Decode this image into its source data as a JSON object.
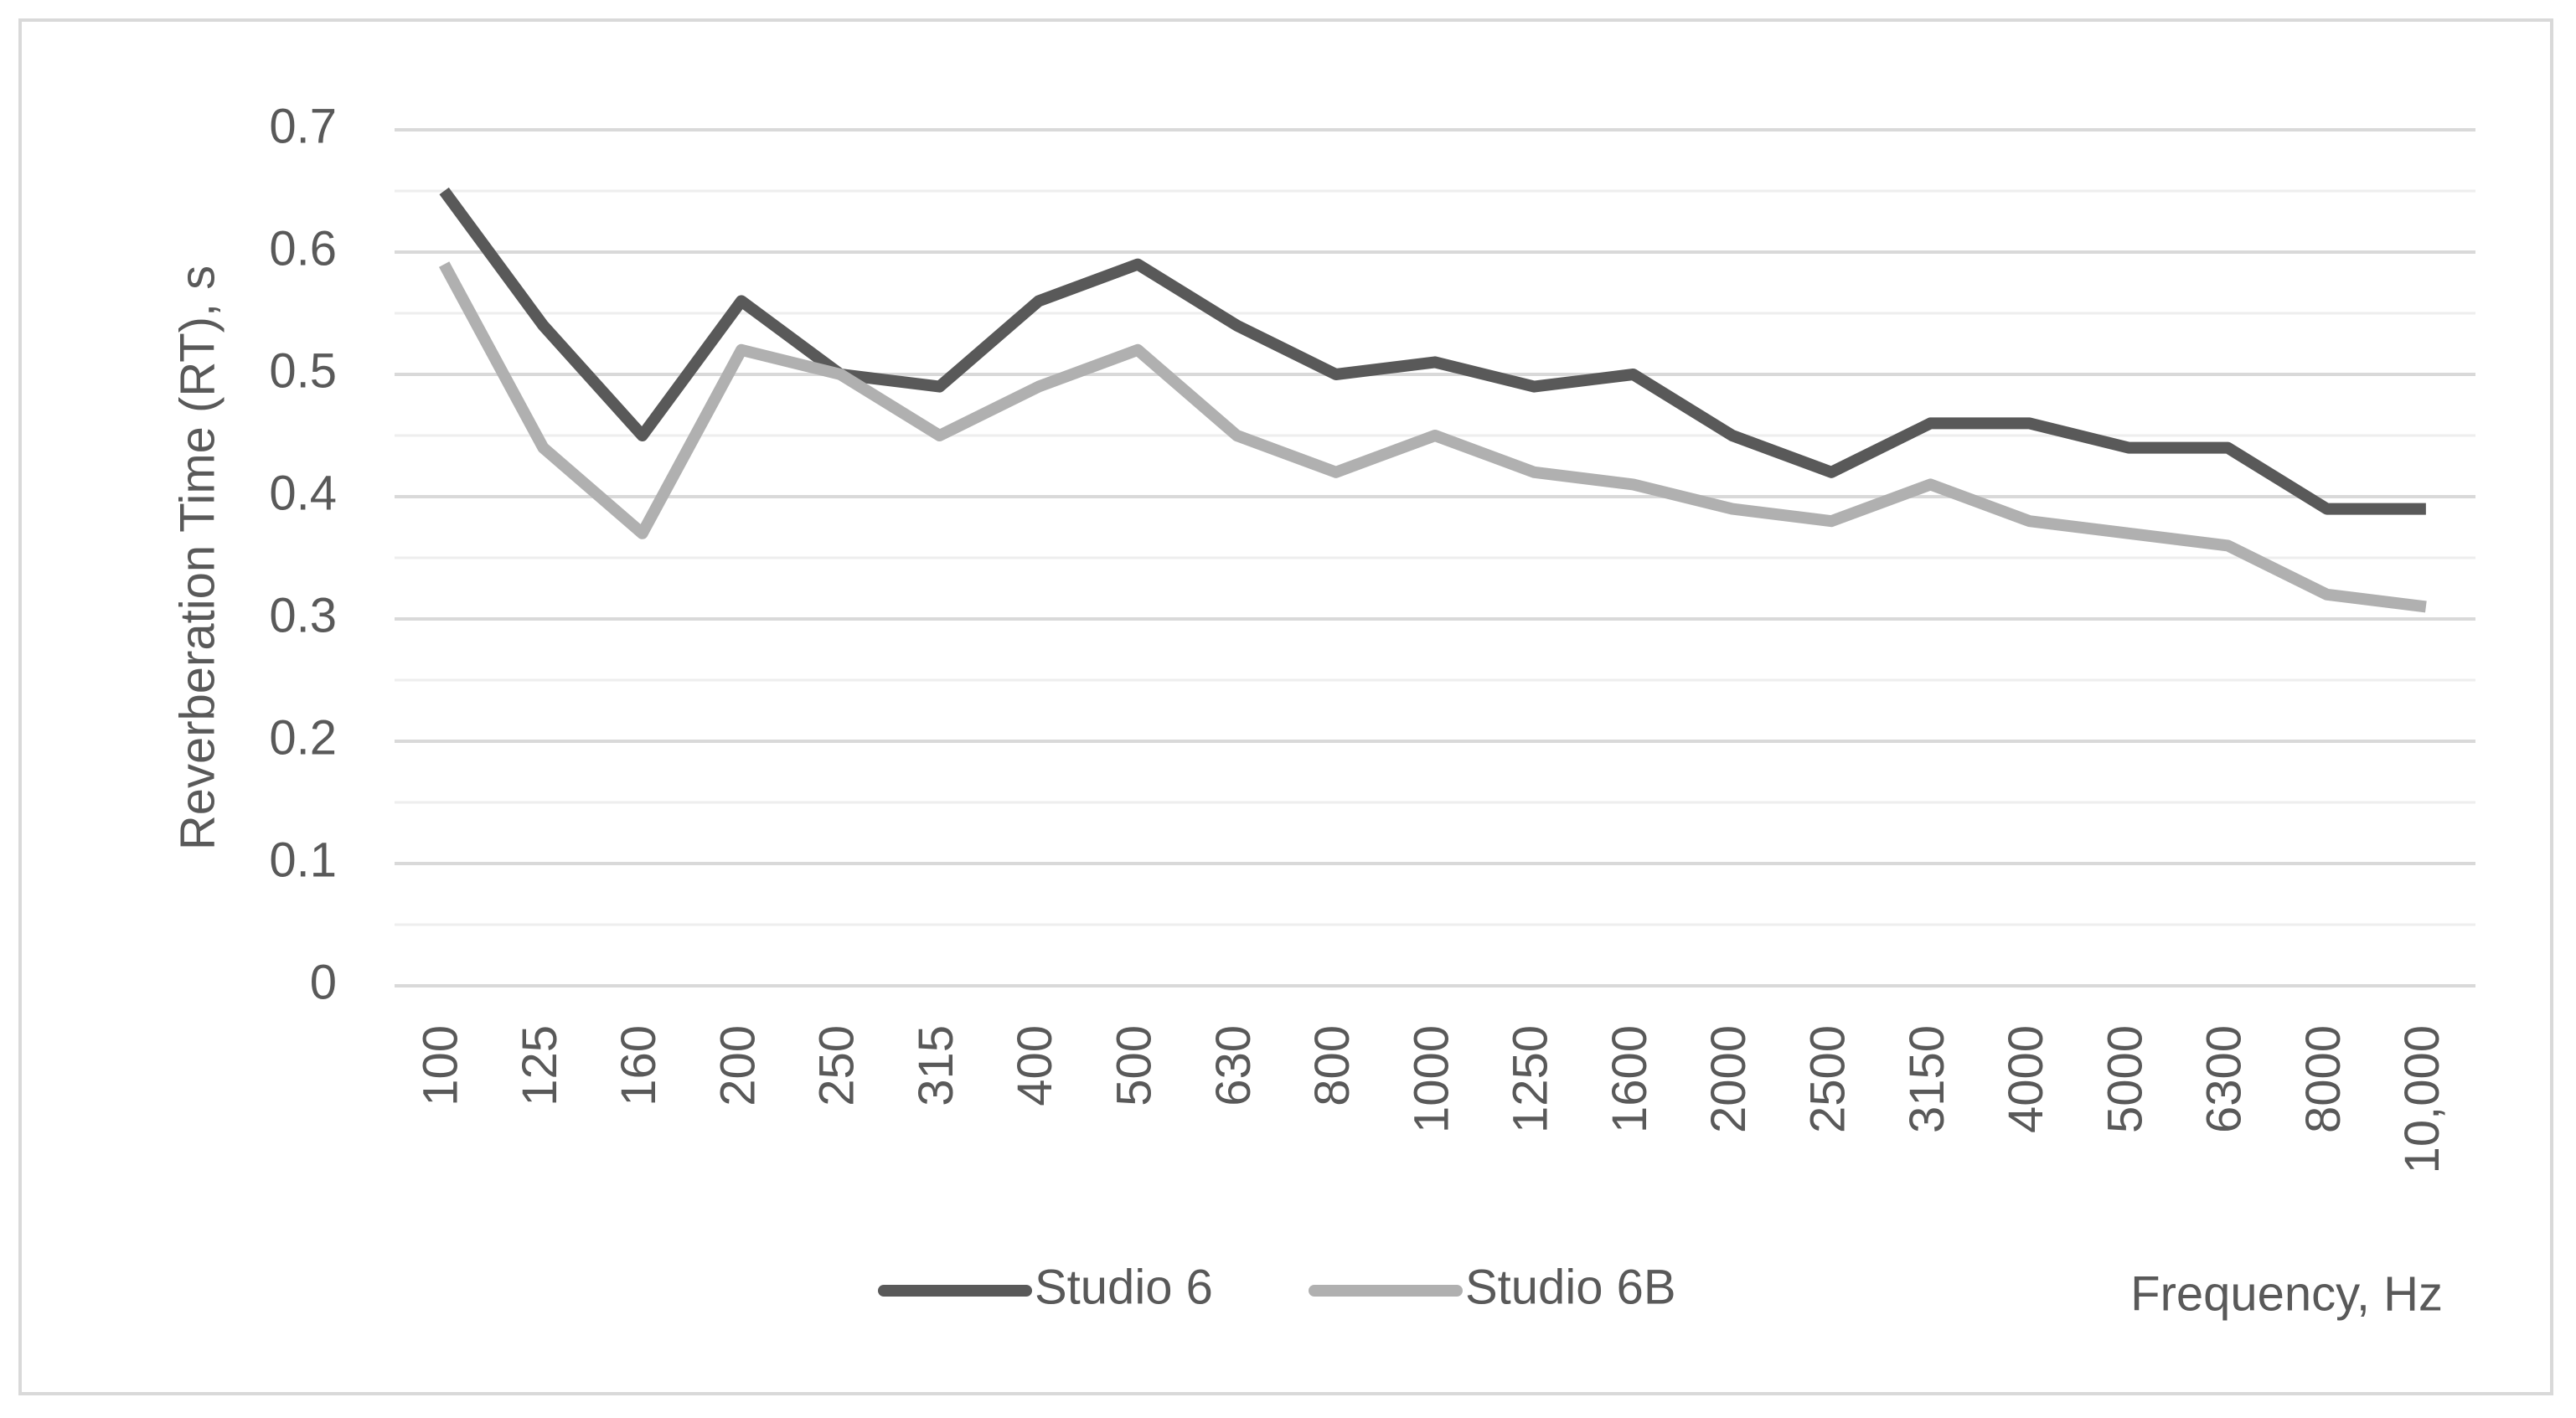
{
  "chart_data": {
    "type": "line",
    "y_label": "Reverberation Time (RT), s",
    "x_label": "Frequency, Hz",
    "categories": [
      "100",
      "125",
      "160",
      "200",
      "250",
      "315",
      "400",
      "500",
      "630",
      "800",
      "1000",
      "1250",
      "1600",
      "2000",
      "2500",
      "3150",
      "4000",
      "5000",
      "6300",
      "8000",
      "10,000"
    ],
    "series": [
      {
        "name": "Studio 6",
        "color": "#595959",
        "values": [
          0.65,
          0.54,
          0.45,
          0.56,
          0.5,
          0.49,
          0.56,
          0.59,
          0.54,
          0.5,
          0.51,
          0.49,
          0.5,
          0.45,
          0.42,
          0.46,
          0.46,
          0.44,
          0.44,
          0.39,
          0.39
        ]
      },
      {
        "name": "Studio 6B",
        "color": "#b0b0b0",
        "values": [
          0.59,
          0.44,
          0.37,
          0.52,
          0.5,
          0.45,
          0.49,
          0.52,
          0.45,
          0.42,
          0.45,
          0.42,
          0.41,
          0.39,
          0.38,
          0.41,
          0.38,
          0.37,
          0.36,
          0.32,
          0.31
        ]
      }
    ],
    "ylim": [
      0,
      0.7
    ],
    "yticks": [
      0,
      0.1,
      0.2,
      0.3,
      0.4,
      0.5,
      0.6,
      0.7
    ],
    "grid": true,
    "minor_grid": true,
    "legend": "bottom"
  }
}
